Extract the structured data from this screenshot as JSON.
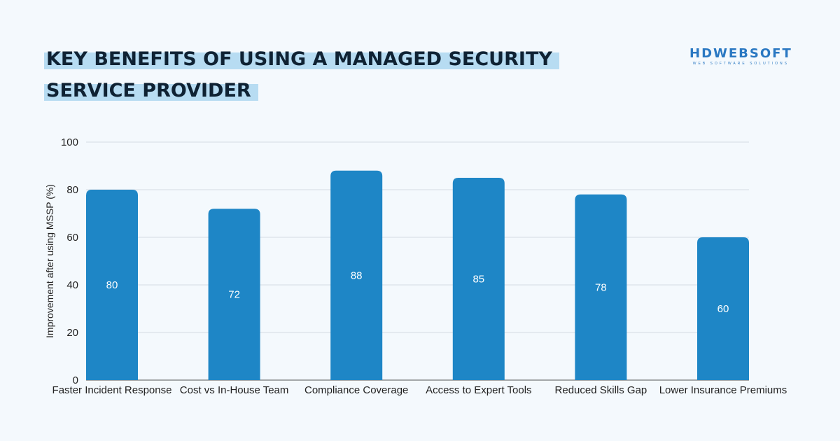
{
  "title_lines": [
    "KEY BENEFITS OF USING A MANAGED SECURITY",
    "SERVICE PROVIDER"
  ],
  "logo": {
    "name": "HDWEBSOFT",
    "tagline": "WEB SOFTWARE SOLUTIONS"
  },
  "colors": {
    "bar": "#1e86c6",
    "background": "#f4f9fd",
    "title_highlight": "#b7dcf2"
  },
  "chart_data": {
    "type": "bar",
    "title": "",
    "xlabel": "",
    "ylabel": "Improvement after using MSSP (%)",
    "categories": [
      "Faster Incident Response",
      "Cost vs In-House Team",
      "Compliance Coverage",
      "Access to Expert Tools",
      "Reduced Skills Gap",
      "Lower Insurance Premiums"
    ],
    "values": [
      80,
      72,
      88,
      85,
      78,
      60
    ],
    "ylim": [
      0,
      100
    ],
    "yticks": [
      0,
      20,
      40,
      60,
      80,
      100
    ],
    "grid": true,
    "data_labels": true
  }
}
